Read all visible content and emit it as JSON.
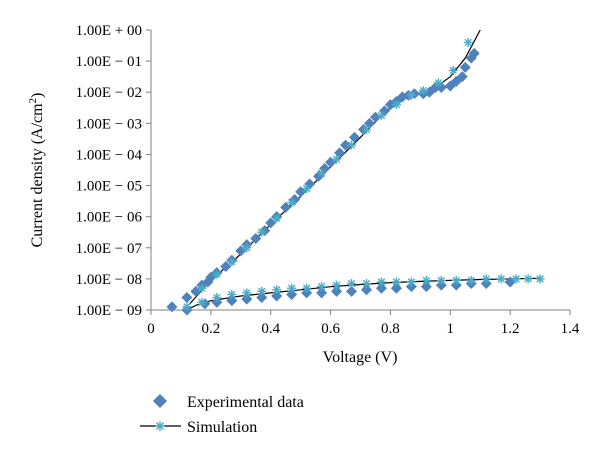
{
  "chart_data": {
    "type": "scatter",
    "xlabel": "Voltage (V)",
    "ylabel": "Current density (A/cm",
    "ylabel_sup": "2",
    "ylabel_end": ")",
    "xlim": [
      0,
      1.4
    ],
    "ylim": [
      -9,
      0
    ],
    "y_scale": "log",
    "grid": false,
    "x_ticks": [
      0,
      0.2,
      0.4,
      0.6,
      0.8,
      1,
      1.2,
      1.4
    ],
    "x_tick_labels": [
      "0",
      "0.2",
      "0.4",
      "0.6",
      "0.8",
      "1",
      "1.2",
      "1.4"
    ],
    "y_ticks": [
      0,
      -1,
      -2,
      -3,
      -4,
      -5,
      -6,
      -7,
      -8,
      -9
    ],
    "y_tick_labels": [
      "1.00E + 00",
      "1.00E − 01",
      "1.00E − 02",
      "1.00E − 03",
      "1.00E − 04",
      "1.00E − 05",
      "1.00E − 06",
      "1.00E − 07",
      "1.00E − 08",
      "1.00E − 09"
    ],
    "legend_position": "bottom-left",
    "colors": {
      "experimental": "#4f81bd",
      "simulation_marker": "#4bacc6",
      "simulation_line": "#000000",
      "axis": "#808080"
    },
    "series": [
      {
        "name": "Experimental data",
        "marker": "diamond",
        "points": [
          [
            0.07,
            -8.9
          ],
          [
            0.12,
            -8.6
          ],
          [
            0.12,
            -9.0
          ],
          [
            0.15,
            -8.4
          ],
          [
            0.17,
            -8.2
          ],
          [
            0.19,
            -8.1
          ],
          [
            0.2,
            -7.95
          ],
          [
            0.22,
            -7.8
          ],
          [
            0.25,
            -7.6
          ],
          [
            0.27,
            -7.4
          ],
          [
            0.3,
            -7.1
          ],
          [
            0.32,
            -6.9
          ],
          [
            0.35,
            -6.7
          ],
          [
            0.38,
            -6.45
          ],
          [
            0.4,
            -6.2
          ],
          [
            0.42,
            -6.0
          ],
          [
            0.45,
            -5.7
          ],
          [
            0.48,
            -5.45
          ],
          [
            0.5,
            -5.2
          ],
          [
            0.53,
            -4.95
          ],
          [
            0.56,
            -4.7
          ],
          [
            0.58,
            -4.45
          ],
          [
            0.6,
            -4.25
          ],
          [
            0.63,
            -3.95
          ],
          [
            0.65,
            -3.7
          ],
          [
            0.68,
            -3.45
          ],
          [
            0.71,
            -3.2
          ],
          [
            0.73,
            -3.0
          ],
          [
            0.75,
            -2.8
          ],
          [
            0.78,
            -2.6
          ],
          [
            0.8,
            -2.4
          ],
          [
            0.82,
            -2.3
          ],
          [
            0.84,
            -2.15
          ],
          [
            0.86,
            -2.1
          ],
          [
            0.88,
            -2.05
          ],
          [
            0.91,
            -2.05
          ],
          [
            0.93,
            -2.0
          ],
          [
            0.95,
            -1.85
          ],
          [
            0.97,
            -1.85
          ],
          [
            1.0,
            -1.8
          ],
          [
            1.02,
            -1.65
          ],
          [
            1.04,
            -1.5
          ],
          [
            1.05,
            -1.2
          ],
          [
            1.07,
            -0.9
          ],
          [
            1.08,
            -0.75
          ],
          [
            0.18,
            -8.8
          ],
          [
            0.22,
            -8.75
          ],
          [
            0.27,
            -8.7
          ],
          [
            0.32,
            -8.65
          ],
          [
            0.37,
            -8.6
          ],
          [
            0.42,
            -8.55
          ],
          [
            0.47,
            -8.5
          ],
          [
            0.52,
            -8.45
          ],
          [
            0.57,
            -8.45
          ],
          [
            0.62,
            -8.4
          ],
          [
            0.67,
            -8.4
          ],
          [
            0.72,
            -8.35
          ],
          [
            0.77,
            -8.3
          ],
          [
            0.82,
            -8.3
          ],
          [
            0.87,
            -8.25
          ],
          [
            0.92,
            -8.25
          ],
          [
            0.97,
            -8.2
          ],
          [
            1.02,
            -8.2
          ],
          [
            1.07,
            -8.15
          ],
          [
            1.12,
            -8.15
          ],
          [
            1.2,
            -8.1
          ]
        ]
      },
      {
        "name": "Simulation",
        "marker": "asterisk",
        "points": [
          [
            0.12,
            -8.9
          ],
          [
            0.17,
            -8.3
          ],
          [
            0.22,
            -7.85
          ],
          [
            0.27,
            -7.45
          ],
          [
            0.32,
            -7.0
          ],
          [
            0.37,
            -6.5
          ],
          [
            0.42,
            -6.05
          ],
          [
            0.47,
            -5.55
          ],
          [
            0.52,
            -5.1
          ],
          [
            0.57,
            -4.6
          ],
          [
            0.62,
            -4.15
          ],
          [
            0.67,
            -3.7
          ],
          [
            0.72,
            -3.2
          ],
          [
            0.77,
            -2.75
          ],
          [
            0.82,
            -2.4
          ],
          [
            0.87,
            -2.1
          ],
          [
            0.91,
            -1.95
          ],
          [
            0.96,
            -1.7
          ],
          [
            1.01,
            -1.3
          ],
          [
            1.06,
            -0.4
          ],
          [
            0.17,
            -8.75
          ],
          [
            0.22,
            -8.6
          ],
          [
            0.27,
            -8.5
          ],
          [
            0.32,
            -8.45
          ],
          [
            0.37,
            -8.4
          ],
          [
            0.42,
            -8.35
          ],
          [
            0.47,
            -8.3
          ],
          [
            0.52,
            -8.3
          ],
          [
            0.57,
            -8.25
          ],
          [
            0.62,
            -8.2
          ],
          [
            0.67,
            -8.15
          ],
          [
            0.72,
            -8.15
          ],
          [
            0.77,
            -8.1
          ],
          [
            0.82,
            -8.1
          ],
          [
            0.87,
            -8.1
          ],
          [
            0.92,
            -8.05
          ],
          [
            0.97,
            -8.05
          ],
          [
            1.02,
            -8.05
          ],
          [
            1.07,
            -8.05
          ],
          [
            1.12,
            -8.0
          ],
          [
            1.17,
            -8.0
          ],
          [
            1.22,
            -8.0
          ],
          [
            1.26,
            -8.0
          ],
          [
            1.3,
            -8.0
          ]
        ],
        "curve_upper": [
          [
            0.12,
            -8.9
          ],
          [
            0.2,
            -8.05
          ],
          [
            0.3,
            -7.2
          ],
          [
            0.4,
            -6.25
          ],
          [
            0.5,
            -5.35
          ],
          [
            0.6,
            -4.4
          ],
          [
            0.7,
            -3.45
          ],
          [
            0.75,
            -2.95
          ],
          [
            0.8,
            -2.5
          ],
          [
            0.85,
            -2.2
          ],
          [
            0.9,
            -2.05
          ],
          [
            0.95,
            -1.85
          ],
          [
            1.0,
            -1.5
          ],
          [
            1.05,
            -0.9
          ],
          [
            1.1,
            0.0
          ]
        ],
        "curve_lower": [
          [
            0.12,
            -9.0
          ],
          [
            0.15,
            -8.85
          ],
          [
            0.2,
            -8.7
          ],
          [
            0.3,
            -8.55
          ],
          [
            0.4,
            -8.45
          ],
          [
            0.5,
            -8.35
          ],
          [
            0.6,
            -8.25
          ],
          [
            0.7,
            -8.18
          ],
          [
            0.8,
            -8.12
          ],
          [
            0.9,
            -8.08
          ],
          [
            1.0,
            -8.05
          ],
          [
            1.1,
            -8.02
          ],
          [
            1.2,
            -8.0
          ],
          [
            1.3,
            -7.98
          ]
        ]
      }
    ]
  }
}
